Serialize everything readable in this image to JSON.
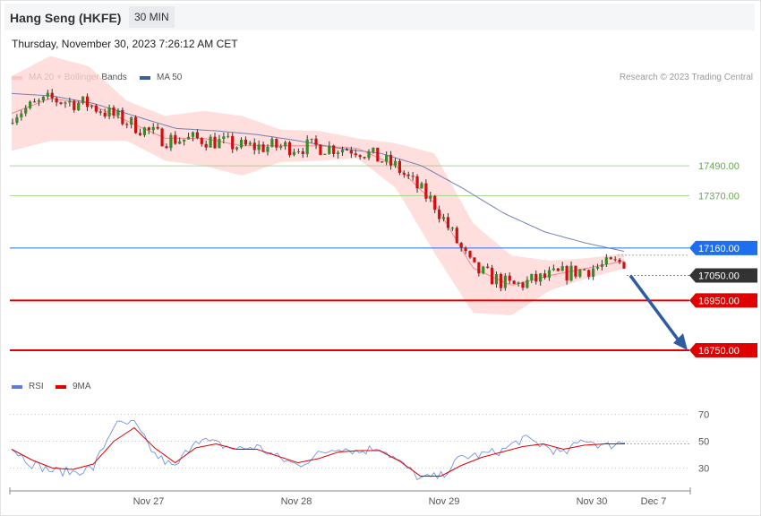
{
  "header": {
    "title": "Hang Seng (HKFE)",
    "interval": "30 MIN"
  },
  "datetime": "Thursday, November 30, 2023 7:26:12 AM CET",
  "legend": [
    {
      "label": "MA 20 + Bollinger Bands",
      "color": "#f08080"
    },
    {
      "label": "MA 50",
      "color": "#3a5f9e"
    }
  ],
  "credit": "Research © 2023 Trading Central",
  "rsi_legend": [
    {
      "label": "RSI",
      "color": "#5b7fd8"
    },
    {
      "label": "9MA",
      "color": "#e00000"
    }
  ],
  "chart_data": [
    {
      "type": "candlestick",
      "title": "",
      "ylim": [
        16610,
        17810
      ],
      "x_ticks": [
        "Nov 27",
        "Nov 28",
        "Nov 29",
        "Nov 30",
        "Dec 7"
      ],
      "current_price": {
        "label": "17050.00",
        "value": 17050,
        "color": "#333333"
      },
      "levels": [
        {
          "label": "17490.00",
          "value": 17490,
          "kind": "resistance",
          "color": "#9acd7a"
        },
        {
          "label": "17370.00",
          "value": 17370,
          "kind": "resistance",
          "color": "#9acd7a"
        },
        {
          "label": "17160.00",
          "value": 17160,
          "kind": "pivot",
          "color": "#1e6ff0"
        },
        {
          "label": "16950.00",
          "value": 16950,
          "kind": "support",
          "color": "#e00000"
        },
        {
          "label": "16750.00",
          "value": 16750,
          "kind": "support",
          "color": "#e00000"
        }
      ],
      "forecast_arrow": {
        "from": 17050,
        "to": 16750,
        "direction": "down",
        "color": "#2f5c9e"
      },
      "ma20_anchor": [
        17700,
        17760,
        17740,
        17670,
        17600,
        17600,
        17570,
        17570,
        17570,
        17560,
        17490,
        17340,
        17080,
        17010,
        17050,
        17080,
        17110
      ],
      "ma50_anchor": [
        17780,
        17770,
        17740,
        17690,
        17640,
        17630,
        17615,
        17590,
        17560,
        17540,
        17490,
        17400,
        17300,
        17225,
        17180,
        17145
      ],
      "bb_width_anchor": [
        150,
        170,
        150,
        80,
        90,
        110,
        120,
        65,
        60,
        40,
        90,
        200,
        180,
        120,
        60,
        40,
        30
      ]
    },
    {
      "type": "line",
      "title": "RSI",
      "ylim": [
        15,
        85
      ],
      "y_ticks": [
        70,
        50,
        30
      ],
      "series": [
        {
          "name": "RSI",
          "color": "#5b7fd8",
          "anchor": [
            45,
            33,
            28,
            27,
            30,
            62,
            63,
            40,
            30,
            52,
            48,
            44,
            46,
            38,
            32,
            40,
            46,
            42,
            46,
            34,
            22,
            24,
            38,
            40,
            43,
            52,
            47,
            40,
            52,
            46,
            50
          ]
        },
        {
          "name": "9MA",
          "color": "#e00000",
          "anchor": [
            44,
            36,
            30,
            29,
            33,
            50,
            60,
            45,
            34,
            45,
            48,
            44,
            44,
            39,
            34,
            37,
            42,
            43,
            43,
            35,
            24,
            24,
            32,
            38,
            42,
            46,
            48,
            44,
            47,
            48,
            48
          ]
        }
      ]
    }
  ]
}
